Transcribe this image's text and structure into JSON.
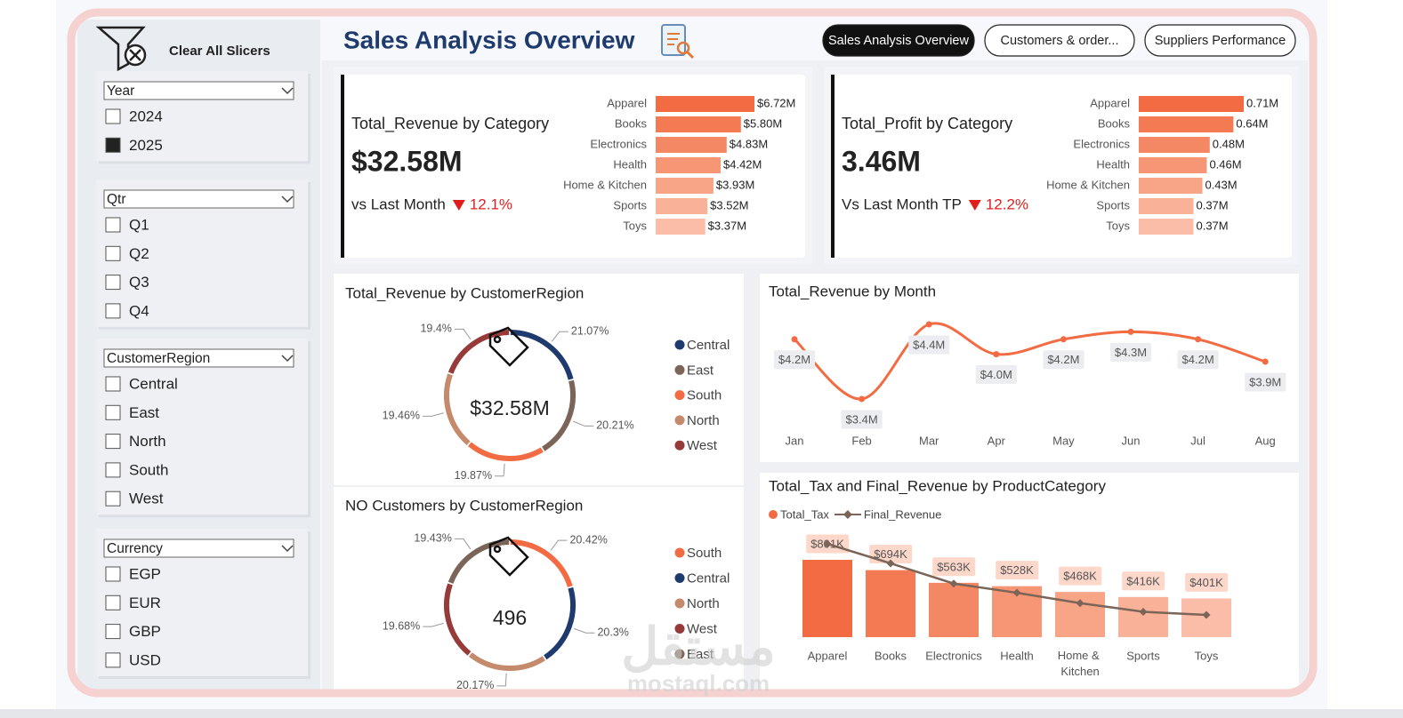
{
  "header": {
    "title": "Sales Analysis Overview",
    "clear_slicers": "Clear All Slicers"
  },
  "navigation": [
    {
      "label": "Sales Analysis Overview",
      "active": true
    },
    {
      "label": "Customers & order...",
      "active": false
    },
    {
      "label": "Suppliers Performance",
      "active": false
    }
  ],
  "slicers": [
    {
      "title": "Year",
      "options": [
        {
          "label": "2024",
          "checked": false
        },
        {
          "label": "2025",
          "checked": true
        }
      ]
    },
    {
      "title": "Qtr",
      "options": [
        {
          "label": "Q1",
          "checked": false
        },
        {
          "label": "Q2",
          "checked": false
        },
        {
          "label": "Q3",
          "checked": false
        },
        {
          "label": "Q4",
          "checked": false
        }
      ]
    },
    {
      "title": "CustomerRegion",
      "options": [
        {
          "label": "Central",
          "checked": false
        },
        {
          "label": "East",
          "checked": false
        },
        {
          "label": "North",
          "checked": false
        },
        {
          "label": "South",
          "checked": false
        },
        {
          "label": "West",
          "checked": false
        }
      ]
    },
    {
      "title": "Currency",
      "options": [
        {
          "label": "EGP",
          "checked": false
        },
        {
          "label": "EUR",
          "checked": false
        },
        {
          "label": "GBP",
          "checked": false
        },
        {
          "label": "USD",
          "checked": false
        }
      ]
    }
  ],
  "chart_data": [
    {
      "type": "bar",
      "orientation": "horizontal",
      "title": "Total_Revenue by Category",
      "kpi": "$32.58M",
      "comparison": "vs Last Month",
      "change": "12.1%",
      "categories": [
        "Apparel",
        "Books",
        "Electronics",
        "Health",
        "Home & Kitchen",
        "Sports",
        "Toys"
      ],
      "values": [
        6.72,
        5.8,
        4.83,
        4.42,
        3.93,
        3.52,
        3.37
      ],
      "value_labels": [
        "$6.72M",
        "$5.80M",
        "$4.83M",
        "$4.42M",
        "$3.93M",
        "$3.52M",
        "$3.37M"
      ],
      "colors": [
        "#f26b43",
        "#f47a54",
        "#f58864",
        "#f69674",
        "#f8a486",
        "#f9b197",
        "#fbbda8"
      ]
    },
    {
      "type": "bar",
      "orientation": "horizontal",
      "title": "Total_Profit by Category",
      "kpi": "3.46M",
      "comparison": "Vs Last Month TP",
      "change": "12.2%",
      "categories": [
        "Apparel",
        "Books",
        "Electronics",
        "Health",
        "Home & Kitchen",
        "Sports",
        "Toys"
      ],
      "values": [
        0.71,
        0.64,
        0.48,
        0.46,
        0.43,
        0.37,
        0.37
      ],
      "value_labels": [
        "0.71M",
        "0.64M",
        "0.48M",
        "0.46M",
        "0.43M",
        "0.37M",
        "0.37M"
      ],
      "colors": [
        "#f26b43",
        "#f47a54",
        "#f58864",
        "#f69674",
        "#f8a486",
        "#f9b197",
        "#fbbda8"
      ]
    },
    {
      "type": "pie",
      "donut": true,
      "title": "Total_Revenue by CustomerRegion",
      "center_label": "$32.58M",
      "categories": [
        "Central",
        "East",
        "South",
        "North",
        "West"
      ],
      "values": [
        21.07,
        20.21,
        19.87,
        19.46,
        19.4
      ],
      "value_labels": [
        "21.07%",
        "20.21%",
        "19.87%",
        "19.46%",
        "19.4%"
      ],
      "colors": [
        "#1f3b6e",
        "#7b6558",
        "#f26b43",
        "#c48a6b",
        "#973a3a"
      ]
    },
    {
      "type": "pie",
      "donut": true,
      "title": "NO Customers by CustomerRegion",
      "center_label": 496,
      "categories": [
        "South",
        "Central",
        "North",
        "West",
        "East"
      ],
      "values": [
        20.42,
        20.3,
        20.17,
        19.68,
        19.43
      ],
      "value_labels": [
        "20.42%",
        "20.3%",
        "20.17%",
        "19.68%",
        "19.43%"
      ],
      "colors": [
        "#f26b43",
        "#1f3b6e",
        "#c48a6b",
        "#973a3a",
        "#7b6558"
      ]
    },
    {
      "type": "line",
      "title": "Total_Revenue by Month",
      "color": "#f26b43",
      "categories": [
        "Jan",
        "Feb",
        "Mar",
        "Apr",
        "May",
        "Jun",
        "Jul",
        "Aug"
      ],
      "values": [
        4.2,
        3.4,
        4.4,
        4.0,
        4.2,
        4.3,
        4.2,
        3.9
      ],
      "value_labels": [
        "$4.2M",
        "$3.4M",
        "$4.4M",
        "$4.0M",
        "$4.2M",
        "$4.3M",
        "$4.2M",
        "$3.9M"
      ]
    },
    {
      "type": "combo",
      "title": "Total_Tax and Final_Revenue by ProductCategory",
      "categories": [
        "Apparel",
        "Books",
        "Electronics",
        "Health",
        "Home & Kitchen",
        "Sports",
        "Toys"
      ],
      "series": [
        {
          "name": "Total_Tax",
          "type": "bar",
          "color": "#f26b43",
          "values": [
            801,
            694,
            563,
            528,
            468,
            416,
            401
          ],
          "value_labels": [
            "$801K",
            "$694K",
            "$563K",
            "$528K",
            "$468K",
            "$416K",
            "$401K"
          ],
          "colors": [
            "#f26b43",
            "#f47a54",
            "#f58864",
            "#f69674",
            "#f8a486",
            "#f9b197",
            "#fbbda8"
          ]
        },
        {
          "name": "Final_Revenue",
          "type": "line",
          "color": "#7b6558",
          "values": [
            5.92,
            5.11,
            4.27,
            3.89,
            3.46,
            3.1,
            2.97
          ]
        }
      ]
    }
  ],
  "watermark": {
    "arabic": "مستقل",
    "latin": "mostaql.com"
  }
}
